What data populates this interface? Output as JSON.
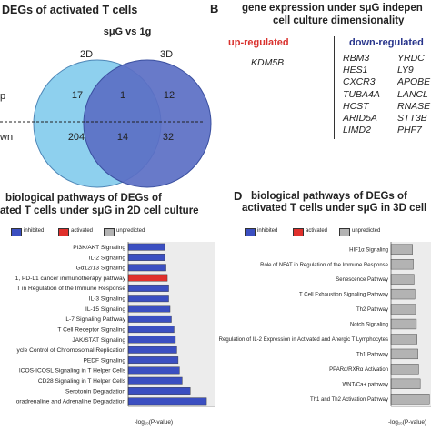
{
  "panelA": {
    "title": "DEGs of activated T cells",
    "condition": "sμG vs 1g",
    "set_left": "2D",
    "set_right": "3D",
    "row_top": "p",
    "row_bottom": "wn",
    "counts": {
      "left_top": "17",
      "center_top": "1",
      "right_top": "12",
      "left_bottom": "204",
      "center_bottom": "14",
      "right_bottom": "32"
    },
    "colors": {
      "left": "#8ed0ee",
      "right": "#5b6fc4",
      "overlap": "#6a84cf"
    }
  },
  "panelB": {
    "letter": "B",
    "title_line1": "gene expression under sμG indepen",
    "title_line2": "cell culture dimensionality",
    "up_label": "up-regulated",
    "down_label": "down-regulated",
    "up_genes": [
      "KDM5B"
    ],
    "down_col1": [
      "RBM3",
      "HES1",
      "CXCR3",
      "TUBA4A",
      "HCST",
      "ARID5A",
      "LIMD2"
    ],
    "down_col2": [
      "YRDC",
      "LY9",
      "APOBE",
      "LANCL",
      "RNASE",
      "STT3B",
      "PHF7"
    ],
    "up_color": "#d9322e",
    "down_color": "#27348b"
  },
  "legend": {
    "inhibited": "inhibited",
    "activated": "activated",
    "unpredicted": "unpredicted",
    "colors": {
      "inhibited": "#3b4fc1",
      "activated": "#e0302c",
      "unpredicted": "#b3b3b3"
    }
  },
  "panelC": {
    "title_line1": "biological pathways of DEGs of",
    "title_line2": "ated T cells under sμG in 2D cell culture",
    "xlabel": "-log₁₀(P-value)"
  },
  "panelD": {
    "letter": "D",
    "title_line1": "biological pathways of DEGs of",
    "title_line2": "activated T cells under sμG in 3D cell",
    "xlabel": "-log₁₀(P-value)"
  },
  "chart_data": [
    {
      "type": "bar",
      "orientation": "horizontal",
      "title": "biological pathways of DEGs of activated T cells under sμG in 2D cell culture",
      "xlabel": "-log₁₀(P-value)",
      "categories": [
        "PI3K/AKT Signaling",
        "IL-2 Signaling",
        "Gα12/13 Signaling",
        "1, PD-L1 cancer immunotherapy pathway",
        "T in Regulation of the Immune Response",
        "IL-3 Signaling",
        "IL-15 Signaling",
        "IL-7 Signaling Pathway",
        "T Cell Receptor Signaling",
        "JAK/STAT Signaling",
        "ycle Control of Chromosomal Replication",
        "PEDF Signaling",
        "ICOS-ICOSL Signaling in T Helper Cells",
        "CD28 Signaling in T Helper Cells",
        "Serotonin Degradation",
        "oradrenaline and Adrenaline Degradation"
      ],
      "values": [
        1.35,
        1.35,
        1.4,
        1.45,
        1.5,
        1.5,
        1.55,
        1.6,
        1.7,
        1.75,
        1.8,
        1.85,
        1.9,
        2.0,
        2.3,
        2.9
      ],
      "status": [
        "inhibited",
        "inhibited",
        "inhibited",
        "activated",
        "inhibited",
        "inhibited",
        "inhibited",
        "inhibited",
        "inhibited",
        "inhibited",
        "inhibited",
        "inhibited",
        "inhibited",
        "inhibited",
        "inhibited",
        "inhibited"
      ],
      "xlim": [
        0,
        3.2
      ]
    },
    {
      "type": "bar",
      "orientation": "horizontal",
      "title": "biological pathways of DEGs of activated T cells under sμG in 3D cell",
      "xlabel": "-log₁₀(P-value)",
      "categories": [
        "HIF1α Signaling",
        "Role of NFAT in Regulation of the Immune Response",
        "Senescence Pathway",
        "T Cell Exhaustion Signaling Pathway",
        "Th2 Pathway",
        "Notch Signaling",
        "Regulation of IL-2 Expression in Activated and Anergic T Lymphocytes",
        "Th1 Pathway",
        "PPARα/RXRα Activation",
        "WNT/Ca+ pathway",
        "Th1 and Th2 Activation Pathway"
      ],
      "values": [
        1.4,
        1.45,
        1.5,
        1.55,
        1.6,
        1.65,
        1.7,
        1.75,
        1.8,
        1.9,
        2.5
      ],
      "status": [
        "unpredicted",
        "unpredicted",
        "unpredicted",
        "unpredicted",
        "unpredicted",
        "unpredicted",
        "unpredicted",
        "unpredicted",
        "unpredicted",
        "unpredicted",
        "unpredicted"
      ],
      "xlim": [
        0,
        2.6
      ]
    }
  ]
}
